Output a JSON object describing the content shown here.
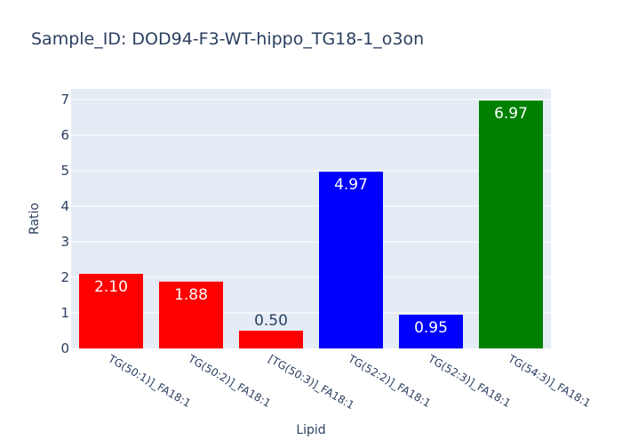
{
  "chart_data": {
    "type": "bar",
    "title": "Sample_ID: DOD94-F3-WT-hippo_TG18-1_o3on",
    "xlabel": "Lipid",
    "ylabel": "Ratio",
    "categories": [
      "TG(50:1)]_FA18:1",
      "TG(50:2)]_FA18:1",
      "[TG(50:3)]_FA18:1",
      "TG(52:2)]_FA18:1",
      "TG(52:3)]_FA18:1",
      "TG(54:3)]_FA18:1"
    ],
    "values": [
      2.1,
      1.88,
      0.5,
      4.97,
      0.95,
      6.97
    ],
    "value_labels": [
      "2.10",
      "1.88",
      "0.50",
      "4.97",
      "0.95",
      "6.97"
    ],
    "bar_colors": [
      "#ff0000",
      "#ff0000",
      "#ff0000",
      "#0000ff",
      "#0000ff",
      "#008000"
    ],
    "ylim": [
      0,
      7.3
    ],
    "yticks": [
      0,
      1,
      2,
      3,
      4,
      5,
      6,
      7
    ],
    "grid": true,
    "colors": {
      "plot_background": "#e5ecf6",
      "grid": "#ffffff",
      "text": "#2a3f5f"
    }
  }
}
